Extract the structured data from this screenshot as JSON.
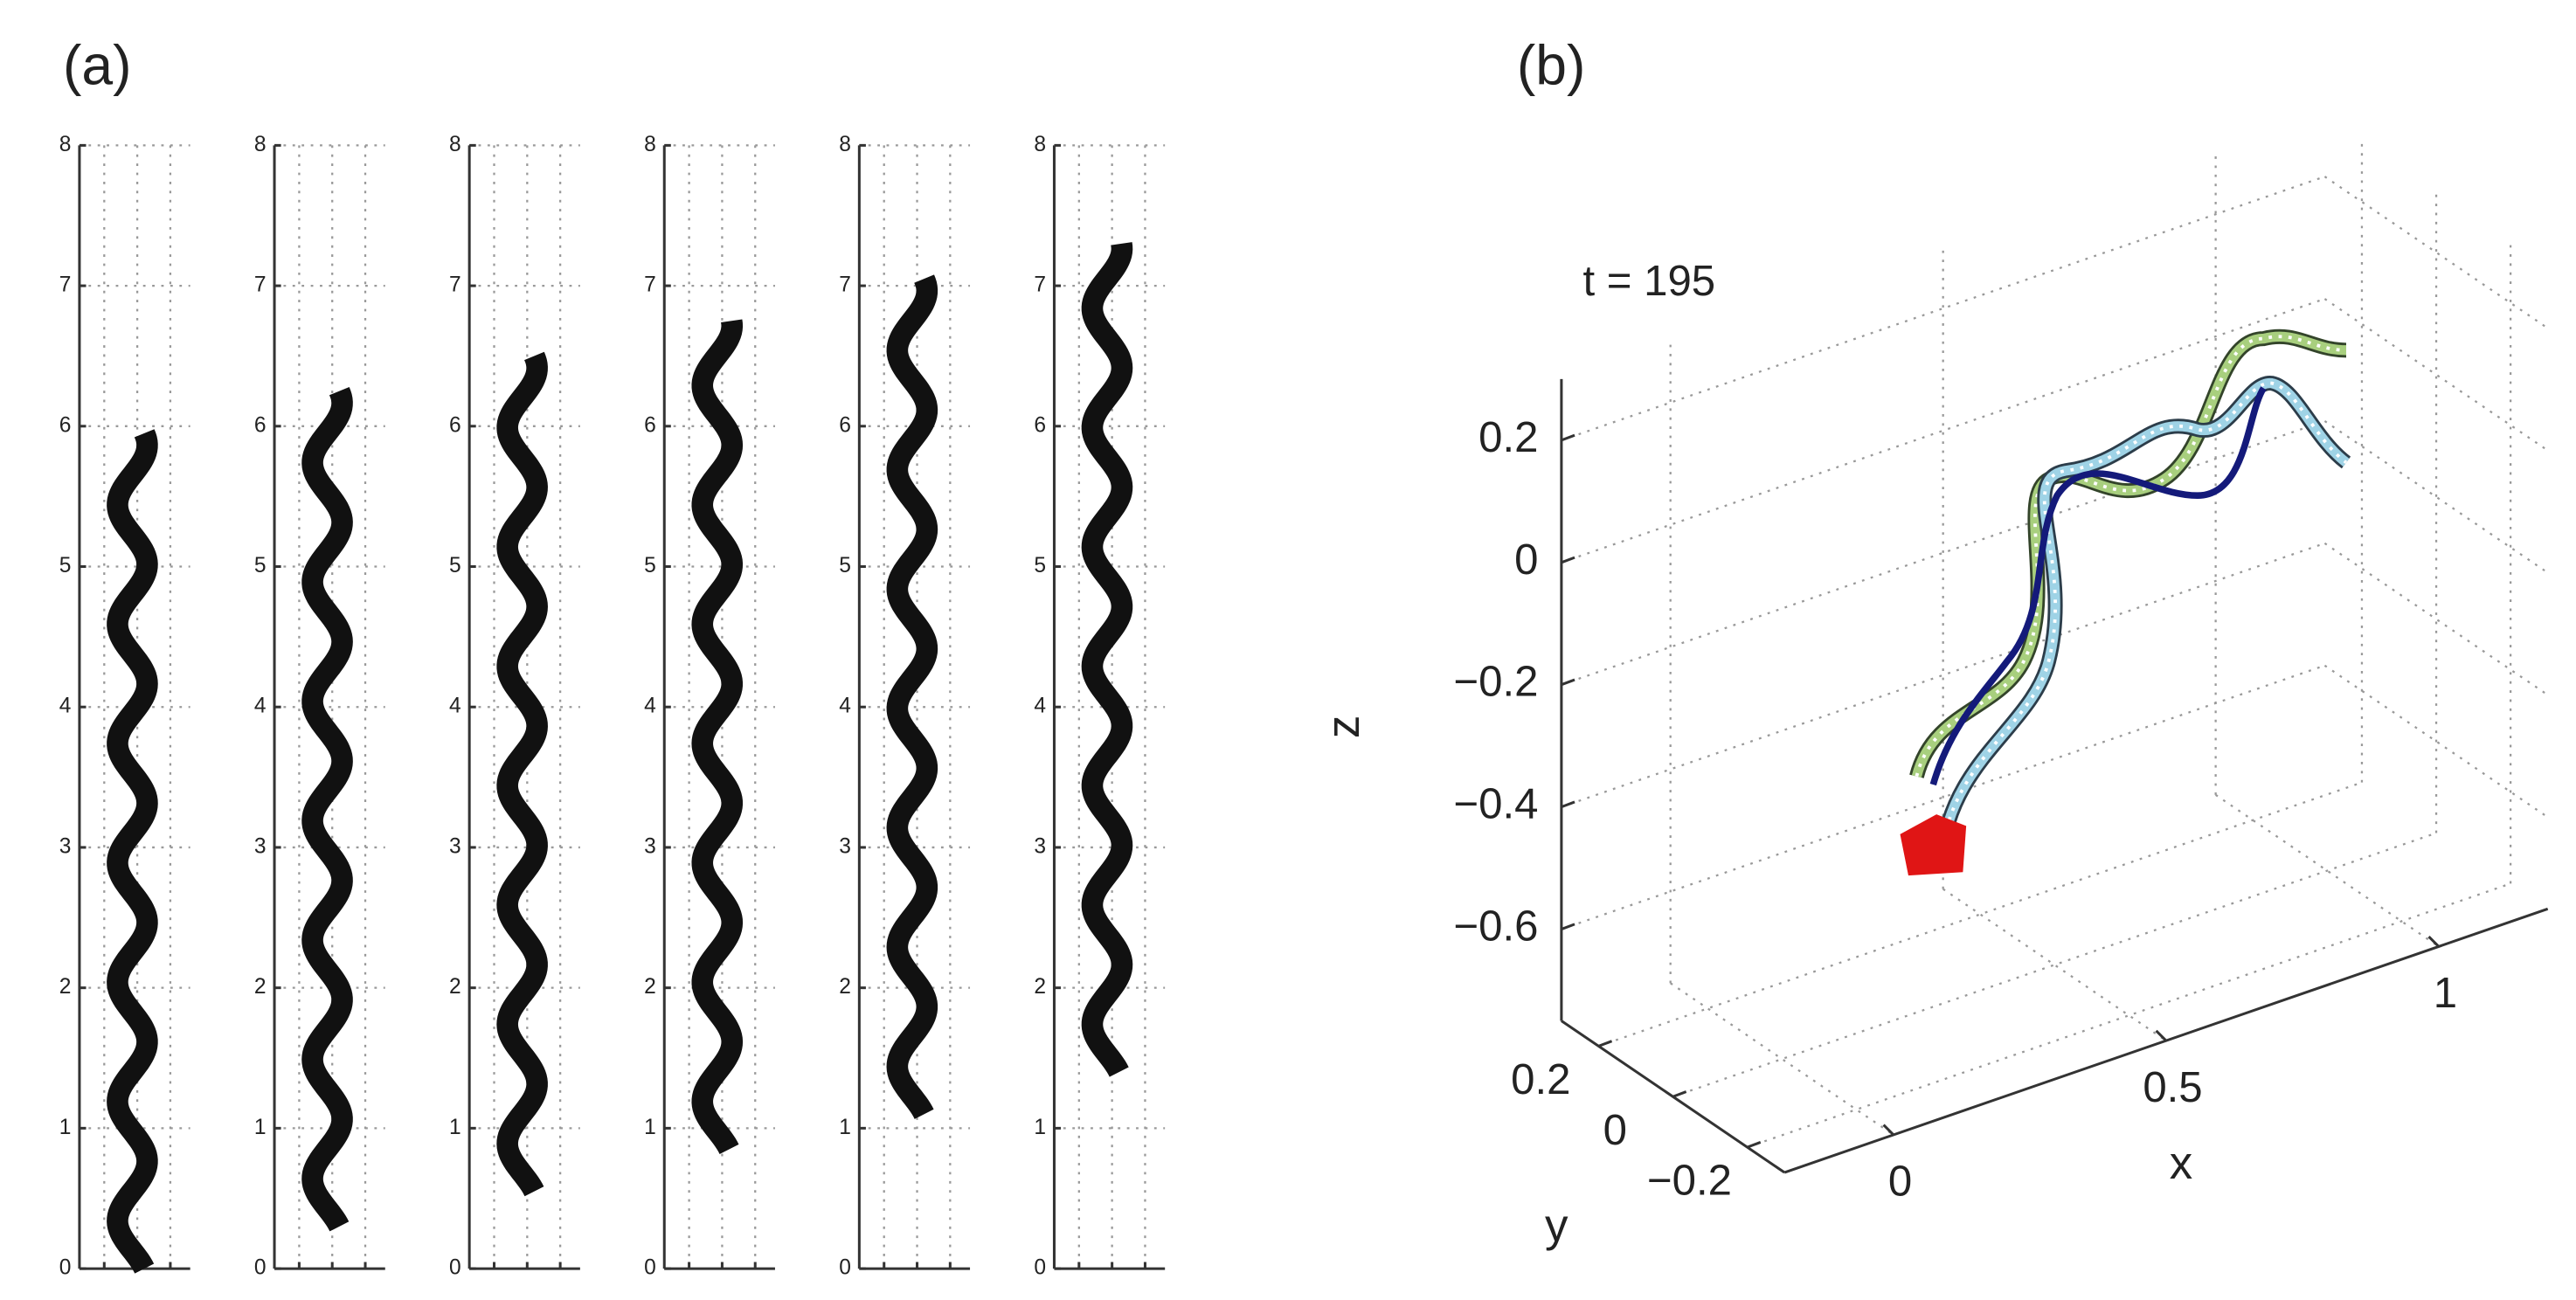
{
  "panels": [
    {
      "label": "(a)"
    },
    {
      "label": "(b)"
    }
  ],
  "chart_data": [
    {
      "type": "worm",
      "ylim": [
        0,
        8
      ],
      "yticks": [
        0,
        1,
        2,
        3,
        4,
        5,
        6,
        7,
        8
      ],
      "grid": true,
      "color": "#111111",
      "values": [
        0,
        5.95
      ]
    },
    {
      "type": "worm",
      "ylim": [
        0,
        8
      ],
      "yticks": [
        0,
        1,
        2,
        3,
        4,
        5,
        6,
        7,
        8
      ],
      "grid": true,
      "color": "#111111",
      "values": [
        0.3,
        6.25
      ]
    },
    {
      "type": "worm",
      "ylim": [
        0,
        8
      ],
      "yticks": [
        0,
        1,
        2,
        3,
        4,
        5,
        6,
        7,
        8
      ],
      "grid": true,
      "color": "#111111",
      "values": [
        0.55,
        6.5
      ]
    },
    {
      "type": "worm",
      "ylim": [
        0,
        8
      ],
      "yticks": [
        0,
        1,
        2,
        3,
        4,
        5,
        6,
        7,
        8
      ],
      "grid": true,
      "color": "#111111",
      "values": [
        0.85,
        6.75
      ]
    },
    {
      "type": "worm",
      "ylim": [
        0,
        8
      ],
      "yticks": [
        0,
        1,
        2,
        3,
        4,
        5,
        6,
        7,
        8
      ],
      "grid": true,
      "color": "#111111",
      "values": [
        1.1,
        7.05
      ]
    },
    {
      "type": "worm",
      "ylim": [
        0,
        8
      ],
      "yticks": [
        0,
        1,
        2,
        3,
        4,
        5,
        6,
        7,
        8
      ],
      "grid": true,
      "color": "#111111",
      "values": [
        1.4,
        7.3
      ]
    },
    {
      "type": "line3d",
      "annotation": "t = 195",
      "xlabel": "x",
      "ylabel": "y",
      "zlabel": "z",
      "xlim": [
        -0.2,
        1.2
      ],
      "ylim": [
        -0.3,
        0.3
      ],
      "zlim": [
        -0.75,
        0.3
      ],
      "xticks": [
        0,
        0.5,
        1
      ],
      "yticks": [
        {
          "value": -0.2,
          "label": "−0.2"
        },
        0,
        0.2
      ],
      "zticks": [
        {
          "value": -0.6,
          "label": "−0.6"
        },
        {
          "value": -0.4,
          "label": "−0.4"
        },
        {
          "value": -0.2,
          "label": "−0.2"
        },
        0,
        0.2
      ],
      "grid": true
    }
  ]
}
